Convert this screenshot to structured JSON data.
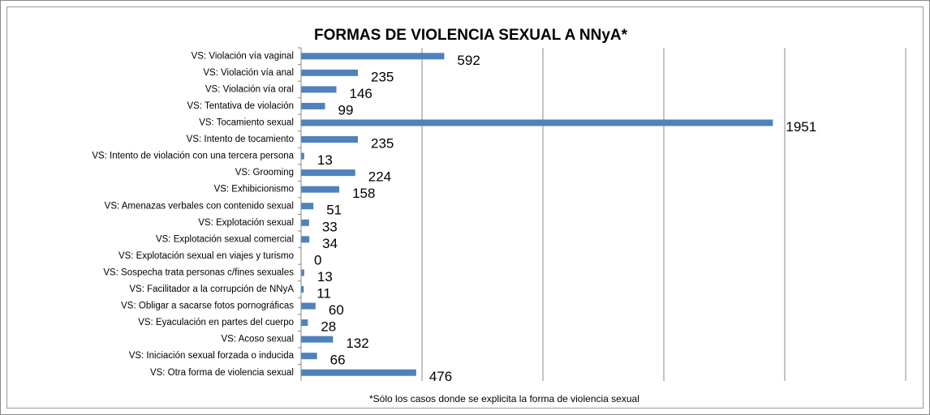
{
  "chart_data": {
    "type": "bar",
    "orientation": "horizontal",
    "title": "FORMAS DE VIOLENCIA SEXUAL A NNyA*",
    "footnote": "*Sólo los casos donde se explicita la forma de violencia sexual",
    "categories": [
      "VS: Violación vía vaginal",
      "VS: Violación vía anal",
      "VS: Violación vía oral",
      "VS: Tentativa de violación",
      "VS: Tocamiento sexual",
      "VS: Intento de tocamiento",
      "VS: Intento de violación con una tercera persona",
      "VS: Grooming",
      "VS: Exhibicionismo",
      "VS: Amenazas verbales con contenido sexual",
      "VS: Explotación sexual",
      "VS: Explotación sexual comercial",
      "VS: Explotación sexual en viajes y turismo",
      "VS: Sospecha trata personas c/fines sexuales",
      "VS: Facilitador a la corrupción de NNyA",
      "VS: Obligar a sacarse fotos pornográficas",
      "VS: Eyaculación en partes del cuerpo",
      "VS: Acoso sexual",
      "VS: Iniciación sexual forzada o inducida",
      "VS: Otra forma de violencia sexual"
    ],
    "values": [
      592,
      235,
      146,
      99,
      1951,
      235,
      13,
      224,
      158,
      51,
      33,
      34,
      0,
      13,
      11,
      60,
      28,
      132,
      66,
      476
    ],
    "color": "#4f81bd",
    "xlim": [
      0,
      2500
    ],
    "xticks": [
      0,
      500,
      1000,
      1500,
      2000,
      2500
    ],
    "grid": true
  }
}
